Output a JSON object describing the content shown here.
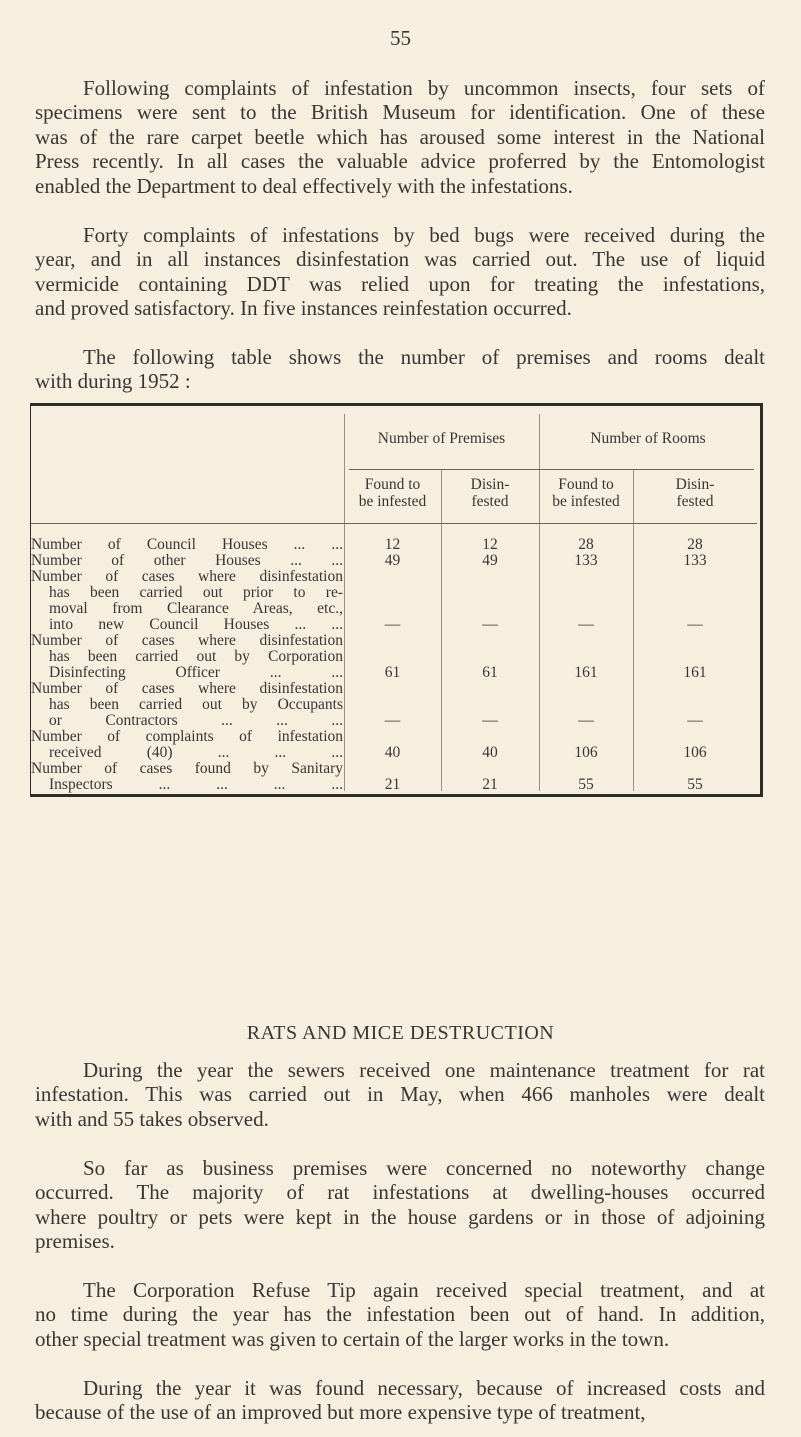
{
  "page_number": "55",
  "paragraphs_top": [
    {
      "lines": [
        "Following complaints of infestation by uncommon insects, four sets of",
        "specimens were sent to the British Museum for identification. One of these",
        "was of the rare carpet beetle which has aroused some interest in the National",
        "Press recently. In all cases the valuable advice proferred by the Entomologist",
        "enabled the Department to deal effectively with the infestations."
      ]
    },
    {
      "lines": [
        "Forty complaints of infestations by bed bugs were received during the",
        "year, and in all instances disinfestation was carried out. The use of liquid",
        "vermicide containing DDT was relied upon for treating the infestations,",
        "and proved satisfactory. In five instances reinfestation occurred."
      ]
    },
    {
      "lines": [
        "The following table shows the number of premises and rooms dealt",
        "with during 1952 :"
      ]
    }
  ],
  "table": {
    "group_headers": [
      "Number of Premises",
      "Number of Rooms"
    ],
    "sub_headers": [
      [
        "Found to",
        "be infested"
      ],
      [
        "Disin-",
        "fested"
      ],
      [
        "Found to",
        "be infested"
      ],
      [
        "Disin-",
        "fested"
      ]
    ],
    "rows": [
      {
        "label": [
          "Number of Council Houses ...      ..."
        ],
        "values": [
          "12",
          "12",
          "28",
          "28"
        ]
      },
      {
        "label": [
          "Number of other Houses      ...      ..."
        ],
        "values": [
          "49",
          "49",
          "133",
          "133"
        ]
      },
      {
        "label": [
          "Number of cases where disinfestation",
          "has been carried out prior to re-",
          "moval from Clearance Areas, etc.,",
          "into new Council Houses ...      ..."
        ],
        "values": [
          "—",
          "—",
          "—",
          "—"
        ]
      },
      {
        "label": [
          "Number of cases where disinfestation",
          "has been carried out by Corporation",
          "Disinfecting Officer      ...      ..."
        ],
        "values": [
          "61",
          "61",
          "161",
          "161"
        ]
      },
      {
        "label": [
          "Number of cases where disinfestation",
          "has been carried out by Occupants",
          "or Contractors      ...      ...      ..."
        ],
        "values": [
          "—",
          "—",
          "—",
          "—"
        ]
      },
      {
        "label": [
          "Number of complaints of infestation",
          "received (40)      ...      ...      ..."
        ],
        "values": [
          "40",
          "40",
          "106",
          "106"
        ]
      },
      {
        "label": [
          "Number of cases found by Sanitary",
          "Inspectors  ...      ...      ...      ..."
        ],
        "values": [
          "21",
          "21",
          "55",
          "55"
        ]
      }
    ]
  },
  "section_heading": "RATS AND MICE DESTRUCTION",
  "paragraphs_bottom": [
    {
      "lines": [
        "During the year the sewers received one maintenance treatment for rat",
        "infestation. This was carried out in May, when 466 manholes were dealt",
        "with and 55 takes observed."
      ]
    },
    {
      "lines": [
        "So far as business premises were concerned no noteworthy change",
        "occurred. The majority of rat infestations at dwelling-houses occurred",
        "where poultry or pets were kept in the house gardens or in those of adjoining",
        "premises."
      ]
    },
    {
      "lines": [
        "The Corporation Refuse Tip again received special treatment, and at",
        "no time during the year has the infestation been out of hand. In addition,",
        "other special treatment was given to certain of the larger works in the town."
      ]
    },
    {
      "lines": [
        "During the year it was found necessary, because of increased costs and",
        "because of the use of an improved but more expensive type of treatment,"
      ]
    }
  ]
}
